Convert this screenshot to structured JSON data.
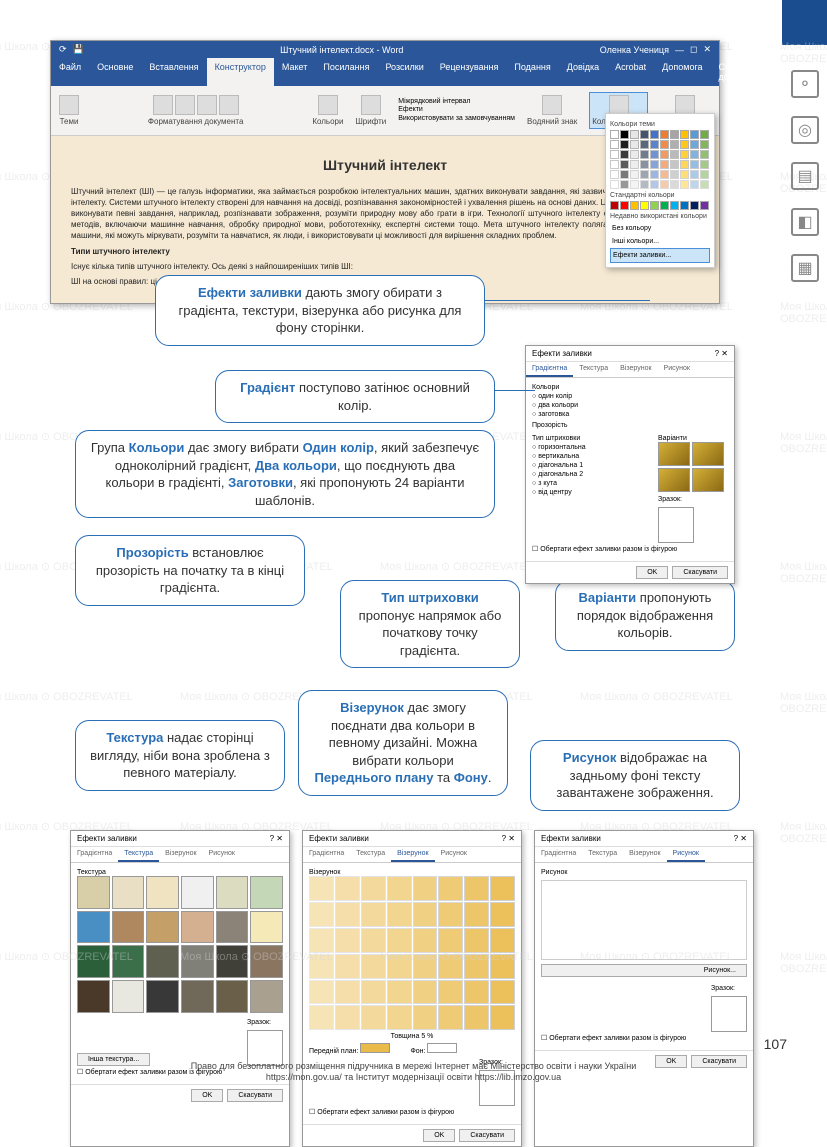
{
  "pageNumber": "107",
  "footer": {
    "line1": "Право для безоплатного розміщення підручника в мережі Інтернет має Міністерство освіти і науки України",
    "line2": "https://mon.gov.ua/ та Інститут модернізації освіти https://lib.imzo.gov.ua"
  },
  "watermarkText": "Моя Школа ⊙ OBOZREVATEL",
  "word": {
    "titlebarDoc": "Штучний інтелект.docx - Word",
    "titlebarUser": "Оленка Учениця",
    "share": "Спільний доступ",
    "help": "Допомога",
    "tabs": [
      "Файл",
      "Основне",
      "Вставлення",
      "Конструктор",
      "Макет",
      "Посилання",
      "Розсилки",
      "Рецензування",
      "Подання",
      "Довідка",
      "Acrobat"
    ],
    "activeTab": "Конструктор",
    "ribbon": {
      "themes": "Теми",
      "formatting": "Форматування документа",
      "colors": "Кольори",
      "fonts": "Шрифти",
      "spacing": "Міжрядковий інтервал",
      "effects": "Ефекти",
      "default": "Використовувати за замовчуванням",
      "watermark": "Водяний знак",
      "pageColor": "Колір сторінки",
      "borders": "Межі сторінок"
    },
    "doc": {
      "title": "Штучний інтелект",
      "p1": "Штучний інтелект (ШІ) — це галузь інформатики, яка займається розробкою інтелектуальних машин, здатних виконувати завдання, які зазвичай вимагають людського інтелекту. Системи штучного інтелекту створені для навчання на досвіді, розпізнавання закономірностей і ухвалення рішень на основі даних. Ці системи можна навчити виконувати певні завдання, наприклад, розпізнавати зображення, розуміти природну мову або грати в ігри. Технології штучного інтелекту охоплює широкий спектр методів, включаючи машинне навчання, обробку природної мови, робототехніку, експертні системи тощо. Мета штучного інтелекту полягає в тому, щоб створити машини, які можуть міркувати, розуміти та навчатися, як люди, і використовувати ці можливості для вирішення складних проблем.",
      "p2": "Типи штучного інтелекту",
      "p3": "Існує кілька типів штучного інтелекту. Ось деякі з найпоширеніших типів ШІ:",
      "p4": "ШІ на основі правил: ці системи використовують набір правил, if-then, які дозволяють ухвалювати рішення на"
    },
    "colorPicker": {
      "themeColors": "Кольори теми",
      "standardColors": "Стандартні кольори",
      "recentColors": "Недавно використані кольори",
      "noColor": "Без кольору",
      "moreColors": "Інші кольори...",
      "fillEffects": "Ефекти заливки...",
      "themeRow1": [
        "#ffffff",
        "#000000",
        "#e7e6e6",
        "#44546a",
        "#4472c4",
        "#ed7d31",
        "#a5a5a5",
        "#ffc000",
        "#5b9bd5",
        "#70ad47"
      ],
      "stdColors": [
        "#c00000",
        "#ff0000",
        "#ffc000",
        "#ffff00",
        "#92d050",
        "#00b050",
        "#00b0f0",
        "#0070c0",
        "#002060",
        "#7030a0"
      ]
    }
  },
  "callouts": {
    "fillEffects": "<b>Ефекти заливки</b> дають змогу обирати з градієнта, текстури, візерунка або рисунка для фону сторінки.",
    "gradient": "<b>Градієнт</b> поступово затінює основний колір.",
    "colors": "Група <b>Кольори</b> дає змогу вибрати <b>Один колір</b>, який забезпечує одноколірний градієнт, <b>Два кольори</b>, що поєднують два кольори в градієнті, <b>Заготовки</b>, які пропонують 24 варіанти шаблонів.",
    "transparency": "<b>Прозорість</b> встановлює прозорість на початку та в кінці градієнта.",
    "hatching": "<b>Тип штриховки</b> пропонує напрямок або початкову точку градієнта.",
    "variants": "<b>Варіанти</b> пропонують порядок відображення кольорів.",
    "texture": "<b>Текстура</b> надає сторінці вигляду, ніби вона зроблена з певного матеріалу.",
    "pattern": "<b>Візерунок</b> дає змогу поєднати два кольори в певному дизайні. Можна вибрати кольори <b>Переднього плану</b> та <b>Фону</b>.",
    "picture": "<b>Рисунок</b> відображає на задньому фоні тексту завантажене зображення."
  },
  "dialog": {
    "title": "Ефекти заливки",
    "tabs": [
      "Градієнтна",
      "Текстура",
      "Візерунок",
      "Рисунок"
    ],
    "gradient": {
      "colors": "Кольори",
      "oneColor": "один колір",
      "twoColors": "два кольори",
      "preset": "заготовка",
      "transparency": "Прозорість",
      "hatchType": "Тип штриховки",
      "horizontal": "горизонтальна",
      "vertical": "вертикальна",
      "diagUp": "діагональна 1",
      "diagDown": "діагональна 2",
      "fromCorner": "з кута",
      "fromCenter": "від центру",
      "variants": "Варіанти",
      "sample": "Зразок:",
      "rotate": "Обертати ефект заливки разом із фігурою"
    },
    "texture": {
      "label": "Текстура",
      "other": "Інша текстура...",
      "colors": [
        "#d8cfa8",
        "#e8dfc5",
        "#efe3c2",
        "#f0f0f0",
        "#dcdcc0",
        "#c4d8b8",
        "#4a8fc4",
        "#b08860",
        "#c4a068",
        "#d4b090",
        "#8b8378",
        "#f5e9b8",
        "#2a5f3a",
        "#3a6f4a",
        "#606050",
        "#808078",
        "#404038",
        "#8a7560",
        "#4a3828",
        "#e8e8e0",
        "#383838",
        "#706858",
        "#6a5f48",
        "#aaa090"
      ]
    },
    "pattern": {
      "label": "Візерунок",
      "fg": "Передній план:",
      "bg": "Фон:",
      "thickness": "Товщина 5 %"
    },
    "picture": {
      "select": "Рисунок...",
      "label": "Рисунок"
    },
    "ok": "OK",
    "cancel": "Скасувати"
  }
}
